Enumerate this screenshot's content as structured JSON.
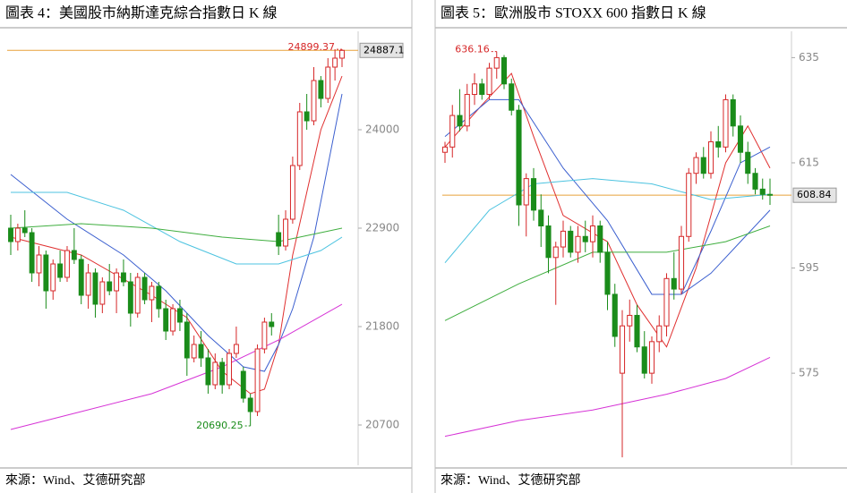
{
  "chart_data": [
    {
      "type": "candlestick",
      "title": "圖表 4：美國股市納斯達克綜合指數日 K 線",
      "source": "來源：Wind、艾德研究部",
      "ylim": [
        20250,
        25100
      ],
      "yticks": [
        20700,
        21800,
        22900,
        24000
      ],
      "up_color": "#d62728",
      "down_color": "#1a8c1a",
      "candles": [
        [
          22900,
          23050,
          22600,
          22750
        ],
        [
          22750,
          22950,
          22650,
          22900
        ],
        [
          22900,
          23100,
          22800,
          22850
        ],
        [
          22850,
          22900,
          22300,
          22400
        ],
        [
          22400,
          22700,
          22250,
          22600
        ],
        [
          22600,
          22650,
          22000,
          22200
        ],
        [
          22200,
          22550,
          22100,
          22500
        ],
        [
          22500,
          22650,
          22300,
          22350
        ],
        [
          22350,
          22700,
          22300,
          22650
        ],
        [
          22650,
          22900,
          22500,
          22550
        ],
        [
          22550,
          22600,
          22050,
          22150
        ],
        [
          22150,
          22500,
          22000,
          22400
        ],
        [
          22400,
          22450,
          21900,
          22050
        ],
        [
          22050,
          22350,
          21950,
          22300
        ],
        [
          22300,
          22500,
          22150,
          22200
        ],
        [
          22200,
          22450,
          21950,
          22400
        ],
        [
          22400,
          22550,
          22250,
          22300
        ],
        [
          22300,
          22400,
          21800,
          21950
        ],
        [
          21950,
          22400,
          21900,
          22350
        ],
        [
          22350,
          22400,
          22050,
          22100
        ],
        [
          22100,
          22300,
          21850,
          22250
        ],
        [
          22250,
          22300,
          21900,
          22000
        ],
        [
          22000,
          22100,
          21650,
          21750
        ],
        [
          21750,
          22050,
          21700,
          22000
        ],
        [
          22000,
          22100,
          21750,
          21850
        ],
        [
          21850,
          21950,
          21250,
          21450
        ],
        [
          21450,
          21700,
          21400,
          21600
        ],
        [
          21600,
          21750,
          21350,
          21450
        ],
        [
          21450,
          21550,
          21050,
          21150
        ],
        [
          21150,
          21500,
          21100,
          21400
        ],
        [
          21400,
          21450,
          21050,
          21150
        ],
        [
          21150,
          21550,
          21100,
          21500
        ],
        [
          21500,
          21800,
          21450,
          21600
        ],
        [
          21300,
          21350,
          20950,
          21000
        ],
        [
          21000,
          21050,
          20690.25,
          20850
        ],
        [
          20850,
          21600,
          20800,
          21550
        ],
        [
          21550,
          21900,
          21500,
          21850
        ],
        [
          21850,
          21950,
          21700,
          21800
        ],
        [
          22850,
          23050,
          22600,
          22700
        ],
        [
          22700,
          23100,
          22650,
          23000
        ],
        [
          23000,
          23700,
          22950,
          23600
        ],
        [
          23600,
          24300,
          23550,
          24200
        ],
        [
          24200,
          24400,
          24000,
          24100
        ],
        [
          24100,
          24700,
          24050,
          24550
        ],
        [
          24550,
          24600,
          24250,
          24350
        ],
        [
          24350,
          24800,
          24300,
          24700
        ],
        [
          24700,
          24900,
          24550,
          24800
        ],
        [
          24800,
          24899.37,
          24700,
          24887.1
        ]
      ],
      "series": [
        {
          "color": "#e03030",
          "x": [
            0,
            10,
            20,
            25,
            30,
            34,
            36,
            38,
            40,
            42,
            44,
            47
          ],
          "values": [
            22800,
            22600,
            22150,
            21900,
            21300,
            21050,
            21100,
            21600,
            22600,
            23300,
            24000,
            24600
          ]
        },
        {
          "color": "#3b5fcf",
          "x": [
            0,
            8,
            16,
            22,
            28,
            33,
            36,
            38,
            40,
            43,
            47
          ],
          "values": [
            23500,
            23000,
            22600,
            22200,
            21700,
            21350,
            21300,
            21600,
            22000,
            22800,
            24400
          ]
        },
        {
          "color": "#4cc3e0",
          "x": [
            0,
            8,
            16,
            24,
            32,
            38,
            44,
            47
          ],
          "values": [
            23300,
            23300,
            23100,
            22750,
            22500,
            22500,
            22650,
            22800
          ]
        },
        {
          "color": "#3fae3f",
          "x": [
            0,
            10,
            20,
            30,
            38,
            44,
            47
          ],
          "values": [
            22900,
            22950,
            22900,
            22800,
            22750,
            22850,
            22900
          ]
        },
        {
          "color": "#d633d6",
          "x": [
            0,
            10,
            20,
            30,
            38,
            47
          ],
          "values": [
            20650,
            20850,
            21050,
            21350,
            21650,
            22050
          ]
        }
      ],
      "high": {
        "value": 24899.37,
        "label": "24899.37"
      },
      "low": {
        "value": 20690.25,
        "label": "20690.25"
      },
      "last": {
        "value": 24887.1,
        "label": "24887.1"
      }
    },
    {
      "type": "candlestick",
      "title": "圖表 5：歐洲股市 STOXX 600 指數日 K 線",
      "source": "來源：Wind、艾德研究部",
      "ylim": [
        557.5,
        640
      ],
      "yticks": [
        575,
        595,
        615,
        635
      ],
      "up_color": "#d62728",
      "down_color": "#1a8c1a",
      "candles": [
        [
          617,
          619,
          615,
          618
        ],
        [
          618,
          626,
          616,
          624
        ],
        [
          624,
          629,
          621,
          622
        ],
        [
          622,
          630,
          621,
          628
        ],
        [
          628,
          632,
          626,
          630
        ],
        [
          630,
          631,
          627,
          628
        ],
        [
          628,
          634,
          627,
          633
        ],
        [
          633,
          636.16,
          631,
          635
        ],
        [
          635,
          635.5,
          629,
          630
        ],
        [
          630,
          631,
          624,
          625
        ],
        [
          625,
          626,
          603,
          607
        ],
        [
          607,
          613,
          601,
          612
        ],
        [
          612,
          614,
          604,
          606
        ],
        [
          606,
          609,
          599,
          603
        ],
        [
          603,
          605,
          594,
          597
        ],
        [
          597,
          600,
          588,
          599
        ],
        [
          599,
          604,
          597,
          602
        ],
        [
          602,
          603,
          597,
          598
        ],
        [
          598,
          603,
          596,
          601
        ],
        [
          601,
          604,
          598,
          600
        ],
        [
          600,
          605,
          597,
          603
        ],
        [
          603,
          604,
          596,
          598
        ],
        [
          598,
          600,
          587,
          590
        ],
        [
          590,
          592,
          580,
          582
        ],
        [
          575,
          587,
          559,
          584
        ],
        [
          584,
          589,
          581,
          586
        ],
        [
          586,
          588,
          579,
          580
        ],
        [
          580,
          583,
          574,
          575
        ],
        [
          575,
          582,
          573,
          581
        ],
        [
          581,
          586,
          579,
          584
        ],
        [
          584,
          594,
          582,
          593
        ],
        [
          593,
          598,
          589,
          591
        ],
        [
          591,
          603,
          590,
          601
        ],
        [
          601,
          614,
          600,
          613
        ],
        [
          613,
          617,
          611,
          616
        ],
        [
          616,
          618,
          612,
          613
        ],
        [
          613,
          621,
          612,
          619
        ],
        [
          619,
          622,
          616,
          618
        ],
        [
          618,
          628,
          617,
          627
        ],
        [
          627,
          628,
          620,
          622
        ],
        [
          622,
          624,
          615,
          617
        ],
        [
          617,
          619,
          611,
          613
        ],
        [
          613,
          614,
          609,
          610
        ],
        [
          610,
          612,
          608,
          609
        ],
        [
          609,
          612,
          607,
          608.84
        ]
      ],
      "series": [
        {
          "color": "#e03030",
          "x": [
            0,
            5,
            9,
            12,
            16,
            22,
            26,
            30,
            34,
            38,
            41,
            44
          ],
          "values": [
            618,
            626,
            632,
            620,
            605,
            600,
            588,
            580,
            595,
            615,
            622,
            614
          ]
        },
        {
          "color": "#3b5fcf",
          "x": [
            0,
            6,
            10,
            16,
            22,
            28,
            32,
            36,
            40,
            44
          ],
          "values": [
            620,
            627,
            627,
            614,
            604,
            590,
            590,
            602,
            615,
            618
          ]
        },
        {
          "color": "#3b5fcf",
          "x": [
            28,
            32,
            36,
            40,
            44
          ],
          "values": [
            590,
            590,
            594,
            600,
            606
          ]
        },
        {
          "color": "#4cc3e0",
          "x": [
            0,
            6,
            12,
            20,
            28,
            36,
            44
          ],
          "values": [
            596,
            606,
            611,
            612,
            611,
            608,
            609
          ]
        },
        {
          "color": "#3fae3f",
          "x": [
            0,
            10,
            20,
            30,
            38,
            44
          ],
          "values": [
            585,
            592,
            598,
            598,
            600,
            603
          ]
        },
        {
          "color": "#d633d6",
          "x": [
            0,
            10,
            20,
            30,
            38,
            44
          ],
          "values": [
            563,
            566,
            568,
            571,
            574,
            578
          ]
        }
      ],
      "high": {
        "value": 636.16,
        "label": "636.16"
      },
      "last": {
        "value": 608.84,
        "label": "608.84"
      }
    }
  ]
}
